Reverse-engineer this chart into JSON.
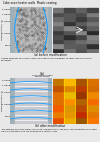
{
  "background": "#e8e8e8",
  "panel_a_title": "Coke oven heater walls  Plastic coating",
  "panel_b_title_line1": "Coil",
  "panel_b_title_line2": "Contraction crack",
  "panel_b_title_line3": "Macro crack",
  "panel_a_caption": "Coarse progress and plastic layers as a result of the gradient of semi-coke contraction movement.",
  "panel_b_caption": "The network of macro-cracks is formed, combination of the semi-coke promotes shrinkage cracks in the walls and the opening of a central crack.",
  "panel_a_label": "(a) before modification",
  "panel_b_label": "(b) after modification",
  "ylabel": "Temperature (°C)",
  "temp_ticks": [
    500,
    1000,
    1500,
    1800,
    2000
  ],
  "temp_tick_labels": [
    "500",
    "1 000",
    "1 500",
    "1 800",
    "2 000"
  ],
  "temp_min": 200,
  "temp_max": 2100,
  "wall_color": "#a0b0b8",
  "wall_color2": "#b0bec8",
  "coal_color": "#b8b8b8",
  "coke_color": "#c8cad0",
  "curve_color": "#1a9fff",
  "grid_color": "#ffffff",
  "title_bg": "#d8d8d8",
  "photo_a_bg": "#303030",
  "photo_b_bg": "#8b3a00"
}
